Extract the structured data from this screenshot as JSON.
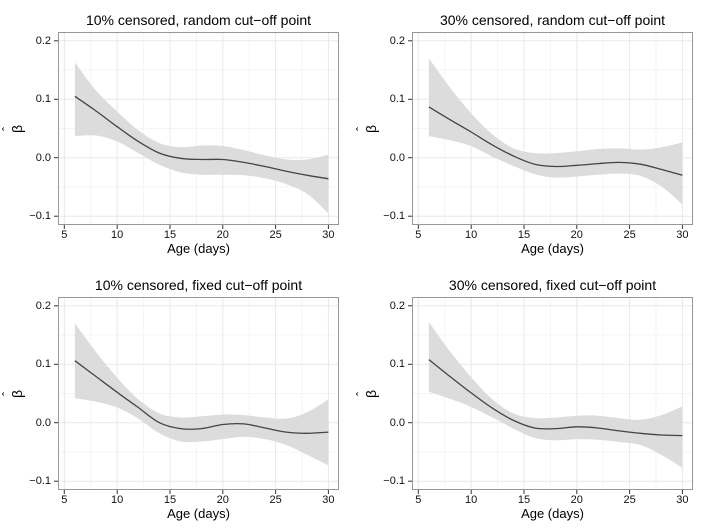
{
  "figure": {
    "ylabel_hat": "ˆ",
    "ylabel_beta": "β"
  },
  "style": {
    "band_color": "#dcdcdc",
    "line_color": "#444444",
    "grid_major_color": "#e8e8e8",
    "grid_minor_color": "#f4f4f4",
    "panel_border_color": "#979797",
    "tick_color": "#333333",
    "text_color": "#000000",
    "background_color": "#ffffff"
  },
  "chart_data": [
    {
      "type": "line",
      "title": "10% censored, random cut−off point",
      "xlabel": "Age (days)",
      "ylabel": "β̂",
      "x": [
        6,
        8,
        10,
        12,
        14,
        16,
        18,
        20,
        22,
        24,
        26,
        28,
        30
      ],
      "series": [
        {
          "name": "smooth_estimate",
          "values": [
            0.105,
            0.08,
            0.053,
            0.028,
            0.008,
            -0.001,
            -0.003,
            -0.003,
            -0.008,
            -0.015,
            -0.023,
            -0.03,
            -0.036
          ]
        },
        {
          "name": "ci_upper",
          "values": [
            0.163,
            0.115,
            0.079,
            0.047,
            0.025,
            0.018,
            0.021,
            0.02,
            0.013,
            0.004,
            -0.003,
            -0.003,
            0.005
          ]
        },
        {
          "name": "ci_lower",
          "values": [
            0.037,
            0.038,
            0.028,
            0.008,
            -0.012,
            -0.025,
            -0.029,
            -0.029,
            -0.03,
            -0.035,
            -0.045,
            -0.062,
            -0.095
          ]
        }
      ],
      "xlim": [
        4.4,
        31.0
      ],
      "ylim": [
        -0.115,
        0.215
      ],
      "x_major_ticks": [
        5,
        10,
        15,
        20,
        25,
        30
      ],
      "x_minor_ticks": [
        7.5,
        12.5,
        17.5,
        22.5,
        27.5
      ],
      "x_tick_labels": [
        "5",
        "10",
        "15",
        "20",
        "25",
        "30"
      ],
      "y_major_ticks": [
        0.2,
        0.1,
        0.0,
        -0.1
      ],
      "y_minor_ticks": [
        0.15,
        0.05,
        -0.05
      ],
      "y_tick_labels": [
        "0.2",
        "0.1",
        "0.0",
        "−0.1"
      ],
      "grid": true,
      "legend": "none"
    },
    {
      "type": "line",
      "title": "30% censored, random cut−off point",
      "xlabel": "Age (days)",
      "ylabel": "β̂",
      "x": [
        6,
        8,
        10,
        12,
        14,
        16,
        18,
        20,
        22,
        24,
        26,
        28,
        30
      ],
      "series": [
        {
          "name": "smooth_estimate",
          "values": [
            0.087,
            0.065,
            0.044,
            0.022,
            0.003,
            -0.011,
            -0.015,
            -0.013,
            -0.01,
            -0.008,
            -0.011,
            -0.02,
            -0.03
          ]
        },
        {
          "name": "ci_upper",
          "values": [
            0.17,
            0.12,
            0.076,
            0.04,
            0.016,
            0.008,
            0.008,
            0.011,
            0.015,
            0.016,
            0.014,
            0.018,
            0.026
          ]
        },
        {
          "name": "ci_lower",
          "values": [
            0.037,
            0.03,
            0.02,
            0.002,
            -0.014,
            -0.028,
            -0.034,
            -0.032,
            -0.029,
            -0.027,
            -0.031,
            -0.049,
            -0.08
          ]
        }
      ],
      "xlim": [
        4.4,
        31.0
      ],
      "ylim": [
        -0.115,
        0.215
      ],
      "x_major_ticks": [
        5,
        10,
        15,
        20,
        25,
        30
      ],
      "x_minor_ticks": [
        7.5,
        12.5,
        17.5,
        22.5,
        27.5
      ],
      "x_tick_labels": [
        "5",
        "10",
        "15",
        "20",
        "25",
        "30"
      ],
      "y_major_ticks": [
        0.2,
        0.1,
        0.0,
        -0.1
      ],
      "y_minor_ticks": [
        0.15,
        0.05,
        -0.05
      ],
      "y_tick_labels": [
        "0.2",
        "0.1",
        "0.0",
        "−0.1"
      ],
      "grid": true,
      "legend": "none"
    },
    {
      "type": "line",
      "title": "10% censored, fixed cut−off point",
      "xlabel": "Age (days)",
      "ylabel": "β̂",
      "x": [
        6,
        8,
        10,
        12,
        14,
        16,
        18,
        20,
        22,
        24,
        26,
        28,
        30
      ],
      "series": [
        {
          "name": "smooth_estimate",
          "values": [
            0.106,
            0.079,
            0.052,
            0.026,
            0.0,
            -0.01,
            -0.01,
            -0.003,
            -0.002,
            -0.009,
            -0.016,
            -0.018,
            -0.016
          ]
        },
        {
          "name": "ci_upper",
          "values": [
            0.17,
            0.121,
            0.077,
            0.04,
            0.016,
            0.009,
            0.011,
            0.014,
            0.013,
            0.009,
            0.007,
            0.018,
            0.04
          ]
        },
        {
          "name": "ci_lower",
          "values": [
            0.042,
            0.036,
            0.026,
            0.007,
            -0.018,
            -0.032,
            -0.032,
            -0.028,
            -0.024,
            -0.028,
            -0.038,
            -0.055,
            -0.073
          ]
        }
      ],
      "xlim": [
        4.4,
        31.0
      ],
      "ylim": [
        -0.115,
        0.215
      ],
      "x_major_ticks": [
        5,
        10,
        15,
        20,
        25,
        30
      ],
      "x_minor_ticks": [
        7.5,
        12.5,
        17.5,
        22.5,
        27.5
      ],
      "x_tick_labels": [
        "5",
        "10",
        "15",
        "20",
        "25",
        "30"
      ],
      "y_major_ticks": [
        0.2,
        0.1,
        0.0,
        -0.1
      ],
      "y_minor_ticks": [
        0.15,
        0.05,
        -0.05
      ],
      "y_tick_labels": [
        "0.2",
        "0.1",
        "0.0",
        "−0.1"
      ],
      "grid": true,
      "legend": "none"
    },
    {
      "type": "line",
      "title": "30% censored, fixed cut−off point",
      "xlabel": "Age (days)",
      "ylabel": "β̂",
      "x": [
        6,
        8,
        10,
        12,
        14,
        16,
        18,
        20,
        22,
        24,
        26,
        28,
        30
      ],
      "series": [
        {
          "name": "smooth_estimate",
          "values": [
            0.108,
            0.079,
            0.051,
            0.025,
            0.004,
            -0.009,
            -0.01,
            -0.007,
            -0.009,
            -0.014,
            -0.018,
            -0.021,
            -0.022
          ]
        },
        {
          "name": "ci_upper",
          "values": [
            0.172,
            0.122,
            0.078,
            0.04,
            0.016,
            0.008,
            0.009,
            0.012,
            0.012,
            0.008,
            0.005,
            0.013,
            0.028
          ]
        },
        {
          "name": "ci_lower",
          "values": [
            0.053,
            0.041,
            0.027,
            0.009,
            -0.01,
            -0.026,
            -0.03,
            -0.028,
            -0.029,
            -0.033,
            -0.038,
            -0.055,
            -0.077
          ]
        }
      ],
      "xlim": [
        4.4,
        31.0
      ],
      "ylim": [
        -0.115,
        0.215
      ],
      "x_major_ticks": [
        5,
        10,
        15,
        20,
        25,
        30
      ],
      "x_minor_ticks": [
        7.5,
        12.5,
        17.5,
        22.5,
        27.5
      ],
      "x_tick_labels": [
        "5",
        "10",
        "15",
        "20",
        "25",
        "30"
      ],
      "y_major_ticks": [
        0.2,
        0.1,
        0.0,
        -0.1
      ],
      "y_minor_ticks": [
        0.15,
        0.05,
        -0.05
      ],
      "y_tick_labels": [
        "0.2",
        "0.1",
        "0.0",
        "−0.1"
      ],
      "grid": true,
      "legend": "none"
    }
  ]
}
